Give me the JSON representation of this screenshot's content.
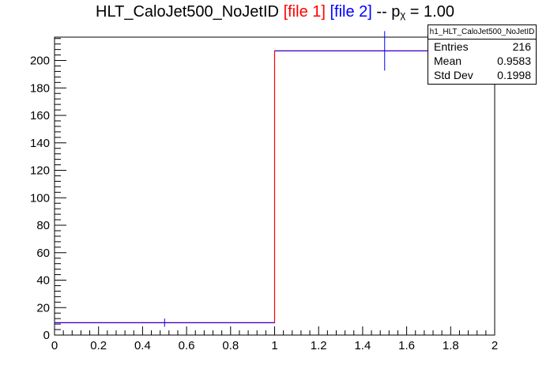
{
  "title": {
    "main": "HLT_CaloJet500_NoJetID",
    "file1": "[file 1]",
    "file2": "[file 2]",
    "suffix_pre": "-- p",
    "suffix_sub": "χ",
    "suffix_post": "= 1.00"
  },
  "stats": {
    "name": "h1_HLT_CaloJet500_NoJetID",
    "rows": [
      {
        "label": "Entries",
        "value": "216"
      },
      {
        "label": "Mean",
        "value": "0.9583"
      },
      {
        "label": "Std Dev",
        "value": "0.1998"
      }
    ]
  },
  "colors": {
    "file1": "#ff0000",
    "file2": "#0000ff",
    "axis": "#000000"
  },
  "chart_data": {
    "type": "bar",
    "xlim": [
      0,
      2
    ],
    "ylim": [
      0,
      217
    ],
    "xticks": [
      "0",
      "0.2",
      "0.4",
      "0.6",
      "0.8",
      "1",
      "1.2",
      "1.4",
      "1.6",
      "1.8",
      "2"
    ],
    "yticks": [
      "0",
      "20",
      "40",
      "60",
      "80",
      "100",
      "120",
      "140",
      "160",
      "180",
      "200"
    ],
    "bins": [
      [
        0,
        1
      ],
      [
        1,
        2
      ]
    ],
    "series": [
      {
        "name": "[file 1]",
        "style": "histogram-step",
        "values": [
          9,
          207
        ]
      },
      {
        "name": "[file 2]",
        "style": "points-with-errors",
        "x": [
          0.5,
          1.5
        ],
        "values": [
          9,
          207
        ],
        "errors": [
          3,
          14.4
        ]
      }
    ]
  }
}
